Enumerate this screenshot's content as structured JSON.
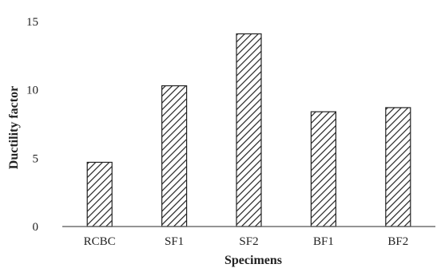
{
  "chart_data": {
    "type": "bar",
    "categories": [
      "RCBC",
      "SF1",
      "SF2",
      "BF1",
      "BF2"
    ],
    "values": [
      4.7,
      10.3,
      14.1,
      8.4,
      8.7
    ],
    "title": "",
    "xlabel": "Specimens",
    "ylabel": "Ductility factor",
    "ylim": [
      0,
      15
    ],
    "yticks": [
      "0",
      "5",
      "10",
      "15"
    ],
    "grid": false,
    "legend": "none",
    "bar_fill": "diagonal-hatch",
    "colors": {
      "bar_stroke": "#222222",
      "axis": "#555555",
      "text": "#222222"
    }
  }
}
